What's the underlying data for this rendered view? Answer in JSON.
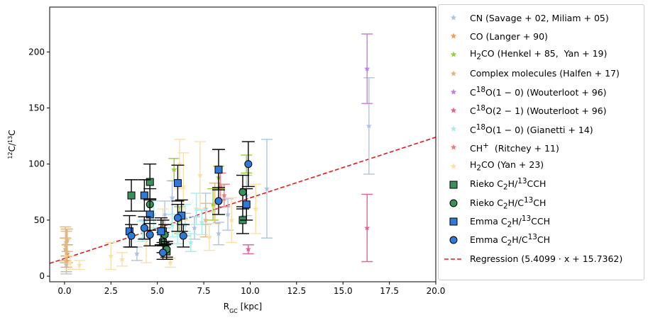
{
  "chart_data": {
    "type": "scatter",
    "xlabel": "R_GC [kpc]",
    "ylabel": "12C/13C",
    "xlim": [
      -0.8,
      20.0
    ],
    "ylim": [
      -5,
      240
    ],
    "xticks": [
      "0.0",
      "2.5",
      "5.0",
      "7.5",
      "10.0",
      "12.5",
      "15.0",
      "17.5",
      "20.0"
    ],
    "yticks": [
      "0",
      "50",
      "100",
      "150",
      "200"
    ],
    "legend_position": "outside-right",
    "series": [
      {
        "name": "CN (Savage + 02,  Miliam + 05)",
        "marker": "star",
        "color": "#b0c4de",
        "points": [
          [
            0.1,
            10,
            8
          ],
          [
            3.9,
            20,
            6
          ],
          [
            4.3,
            42,
            8
          ],
          [
            5.4,
            55,
            12
          ],
          [
            5.8,
            70,
            15
          ],
          [
            6.5,
            46,
            10
          ],
          [
            7.0,
            43,
            10
          ],
          [
            7.6,
            60,
            14
          ],
          [
            8.3,
            38,
            10
          ],
          [
            8.8,
            55,
            14
          ],
          [
            9.8,
            72,
            18
          ],
          [
            10.9,
            78,
            44
          ],
          [
            16.4,
            134,
            43
          ]
        ]
      },
      {
        "name": "CO (Langer + 90)",
        "marker": "star",
        "color": "#f0a050",
        "points": [
          [
            0.05,
            24,
            10
          ],
          [
            0.1,
            30,
            12
          ],
          [
            0.15,
            20,
            8
          ],
          [
            0.1,
            13,
            5
          ]
        ]
      },
      {
        "name": "H2CO (Henkel + 85,  Yan + 19)",
        "marker": "star",
        "color": "#9acd32",
        "points": [
          [
            5.9,
            95,
            10
          ],
          [
            8.3,
            88,
            10
          ],
          [
            9.8,
            100,
            8
          ],
          [
            6.2,
            50,
            12
          ],
          [
            8.0,
            64,
            14
          ]
        ]
      },
      {
        "name": "Complex molecules (Halfen + 17)",
        "marker": "star",
        "color": "#deb887",
        "points": [
          [
            0.05,
            28,
            16
          ],
          [
            0.1,
            22,
            18
          ],
          [
            0.15,
            32,
            10
          ],
          [
            7.6,
            50,
            15
          ],
          [
            8.1,
            65,
            18
          ]
        ]
      },
      {
        "name": "C18O(1 − 0) (Wouterloot + 96)",
        "marker": "star",
        "color": "#c080e0",
        "points": [
          [
            16.3,
            185,
            31
          ]
        ]
      },
      {
        "name": "C18O(2 − 1) (Wouterloot + 96)",
        "marker": "star",
        "color": "#e8609c",
        "points": [
          [
            16.3,
            43,
            30
          ],
          [
            9.9,
            24,
            4
          ]
        ]
      },
      {
        "name": "C18O(1 − 0) (Gianetti + 14)",
        "marker": "star",
        "color": "#a8ede8",
        "points": [
          [
            4.2,
            40,
            9
          ],
          [
            5.2,
            35,
            8
          ],
          [
            5.8,
            45,
            10
          ],
          [
            6.1,
            38,
            9
          ],
          [
            6.5,
            52,
            12
          ],
          [
            7.1,
            60,
            14
          ],
          [
            7.4,
            48,
            11
          ],
          [
            4.8,
            55,
            12
          ],
          [
            6.8,
            30,
            8
          ]
        ]
      },
      {
        "name": "CH+  (Ritchey + 11)",
        "marker": "star",
        "color": "#e88080",
        "points": [
          [
            8.4,
            80,
            12
          ],
          [
            8.6,
            72,
            10
          ]
        ]
      },
      {
        "name": "H2CO (Yan + 23)",
        "marker": "star",
        "color": "#fae0a8",
        "points": [
          [
            0.3,
            12,
            6
          ],
          [
            0.8,
            10,
            4
          ],
          [
            2.5,
            18,
            12
          ],
          [
            3.1,
            15,
            6
          ],
          [
            4.4,
            28,
            16
          ],
          [
            5.3,
            45,
            15
          ],
          [
            6.2,
            100,
            22
          ],
          [
            6.4,
            80,
            30
          ],
          [
            7.3,
            90,
            30
          ],
          [
            7.8,
            35,
            12
          ],
          [
            9.0,
            50,
            20
          ],
          [
            10.3,
            60,
            22
          ],
          [
            5.7,
            12,
            4
          ]
        ]
      },
      {
        "name": "Rieko C2H/13CCH",
        "marker": "square",
        "color": "#3a8f5a",
        "points": [
          [
            3.6,
            72,
            14
          ],
          [
            4.6,
            84,
            16
          ],
          [
            5.3,
            40,
            10
          ],
          [
            5.3,
            30,
            9
          ],
          [
            5.5,
            22,
            7
          ],
          [
            9.6,
            50,
            12
          ]
        ]
      },
      {
        "name": "Rieko C2H/C13CH",
        "marker": "circle",
        "color": "#3a8f5a",
        "points": [
          [
            4.6,
            64,
            14
          ],
          [
            5.4,
            37,
            9
          ],
          [
            5.5,
            24,
            7
          ],
          [
            9.6,
            75,
            15
          ]
        ]
      },
      {
        "name": "Emma C2H/13CCH",
        "marker": "square",
        "color": "#2f7ad8",
        "points": [
          [
            3.5,
            40,
            14
          ],
          [
            4.3,
            72,
            14
          ],
          [
            4.6,
            55,
            14
          ],
          [
            5.2,
            40,
            12
          ],
          [
            6.1,
            83,
            16
          ],
          [
            6.3,
            54,
            14
          ],
          [
            8.3,
            95,
            18
          ],
          [
            9.8,
            64,
            14
          ]
        ]
      },
      {
        "name": "Emma C2H/C13CH",
        "marker": "circle",
        "color": "#2f7ad8",
        "points": [
          [
            3.6,
            36,
            10
          ],
          [
            4.3,
            43,
            10
          ],
          [
            4.6,
            37,
            10
          ],
          [
            5.3,
            21,
            6
          ],
          [
            6.1,
            52,
            12
          ],
          [
            6.4,
            36,
            10
          ],
          [
            8.3,
            67,
            12
          ],
          [
            9.9,
            100,
            20
          ]
        ]
      }
    ],
    "regression": {
      "name": "Regression (5.4099 · x + 15.7362)",
      "slope": 5.4099,
      "intercept": 15.7362,
      "color": "#e8191c"
    }
  }
}
